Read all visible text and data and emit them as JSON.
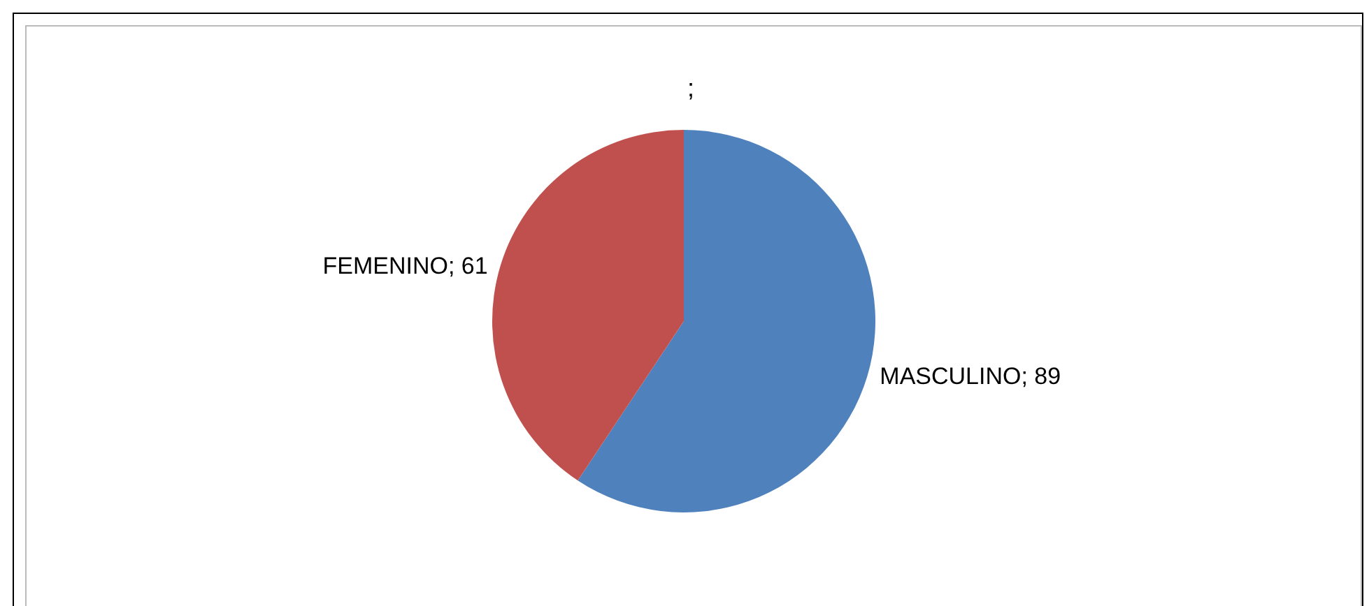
{
  "chart_data": {
    "type": "pie",
    "title": ";",
    "categories": [
      "MASCULINO",
      "FEMENINO"
    ],
    "values": [
      89,
      61
    ],
    "value_labels": [
      "; 89",
      "; 61"
    ],
    "colors": [
      "#4f81bd",
      "#c0504d"
    ],
    "legend": false
  }
}
